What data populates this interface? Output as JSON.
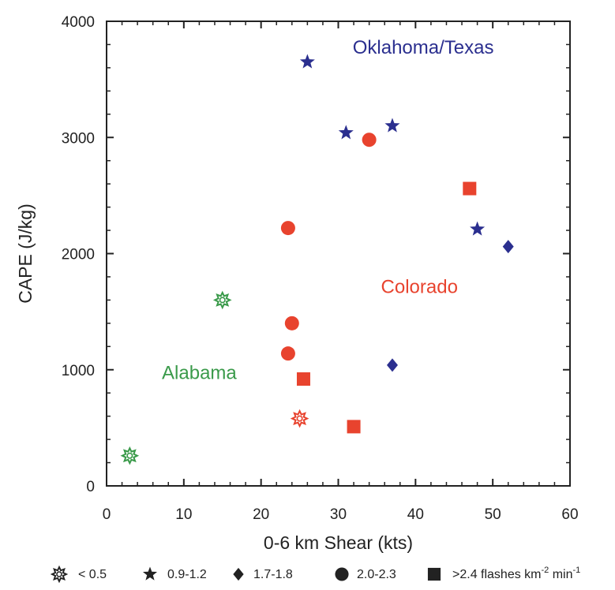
{
  "chart_data": {
    "type": "scatter",
    "title": "",
    "xlabel": "0-6 km Shear (kts)",
    "ylabel": "CAPE (J/kg)",
    "xlim": [
      0,
      60
    ],
    "ylim": [
      0,
      4000
    ],
    "xticks": [
      0,
      10,
      20,
      30,
      40,
      50,
      60
    ],
    "yticks": [
      0,
      1000,
      2000,
      3000,
      4000
    ],
    "grid": false,
    "regions": [
      {
        "name": "Oklahoma/Texas",
        "color": "#2b2f8f",
        "x": 41,
        "y": 3720
      },
      {
        "name": "Colorado",
        "color": "#e8432e",
        "x": 40.5,
        "y": 1660
      },
      {
        "name": "Alabama",
        "color": "#3a9a4a",
        "x": 12,
        "y": 920
      }
    ],
    "marker_classes": [
      {
        "symbol": "burst",
        "label": "< 0.5"
      },
      {
        "symbol": "star",
        "label": "0.9-1.2"
      },
      {
        "symbol": "diamond",
        "label": "1.7-1.8"
      },
      {
        "symbol": "circle",
        "label": "2.0-2.3"
      },
      {
        "symbol": "square",
        "label": ">2.4 flashes km",
        "sup1": "-2",
        "mid": " min",
        "sup2": "-1"
      }
    ],
    "points": [
      {
        "x": 26,
        "y": 3650,
        "symbol": "star",
        "color": "#2b2f8f"
      },
      {
        "x": 31,
        "y": 3040,
        "symbol": "star",
        "color": "#2b2f8f"
      },
      {
        "x": 37,
        "y": 3100,
        "symbol": "star",
        "color": "#2b2f8f"
      },
      {
        "x": 48,
        "y": 2210,
        "symbol": "star",
        "color": "#2b2f8f"
      },
      {
        "x": 52,
        "y": 2060,
        "symbol": "diamond",
        "color": "#2b2f8f"
      },
      {
        "x": 37,
        "y": 1040,
        "symbol": "diamond",
        "color": "#2b2f8f"
      },
      {
        "x": 34,
        "y": 2980,
        "symbol": "circle",
        "color": "#e8432e"
      },
      {
        "x": 23.5,
        "y": 2220,
        "symbol": "circle",
        "color": "#e8432e"
      },
      {
        "x": 24,
        "y": 1400,
        "symbol": "circle",
        "color": "#e8432e"
      },
      {
        "x": 23.5,
        "y": 1140,
        "symbol": "circle",
        "color": "#e8432e"
      },
      {
        "x": 47,
        "y": 2560,
        "symbol": "square",
        "color": "#e8432e"
      },
      {
        "x": 25.5,
        "y": 920,
        "symbol": "square",
        "color": "#e8432e"
      },
      {
        "x": 32,
        "y": 510,
        "symbol": "square",
        "color": "#e8432e"
      },
      {
        "x": 25,
        "y": 580,
        "symbol": "burst",
        "color": "#e8432e"
      },
      {
        "x": 15,
        "y": 1600,
        "symbol": "burst",
        "color": "#3a9a4a"
      },
      {
        "x": 3,
        "y": 260,
        "symbol": "burst",
        "color": "#3a9a4a"
      }
    ]
  }
}
